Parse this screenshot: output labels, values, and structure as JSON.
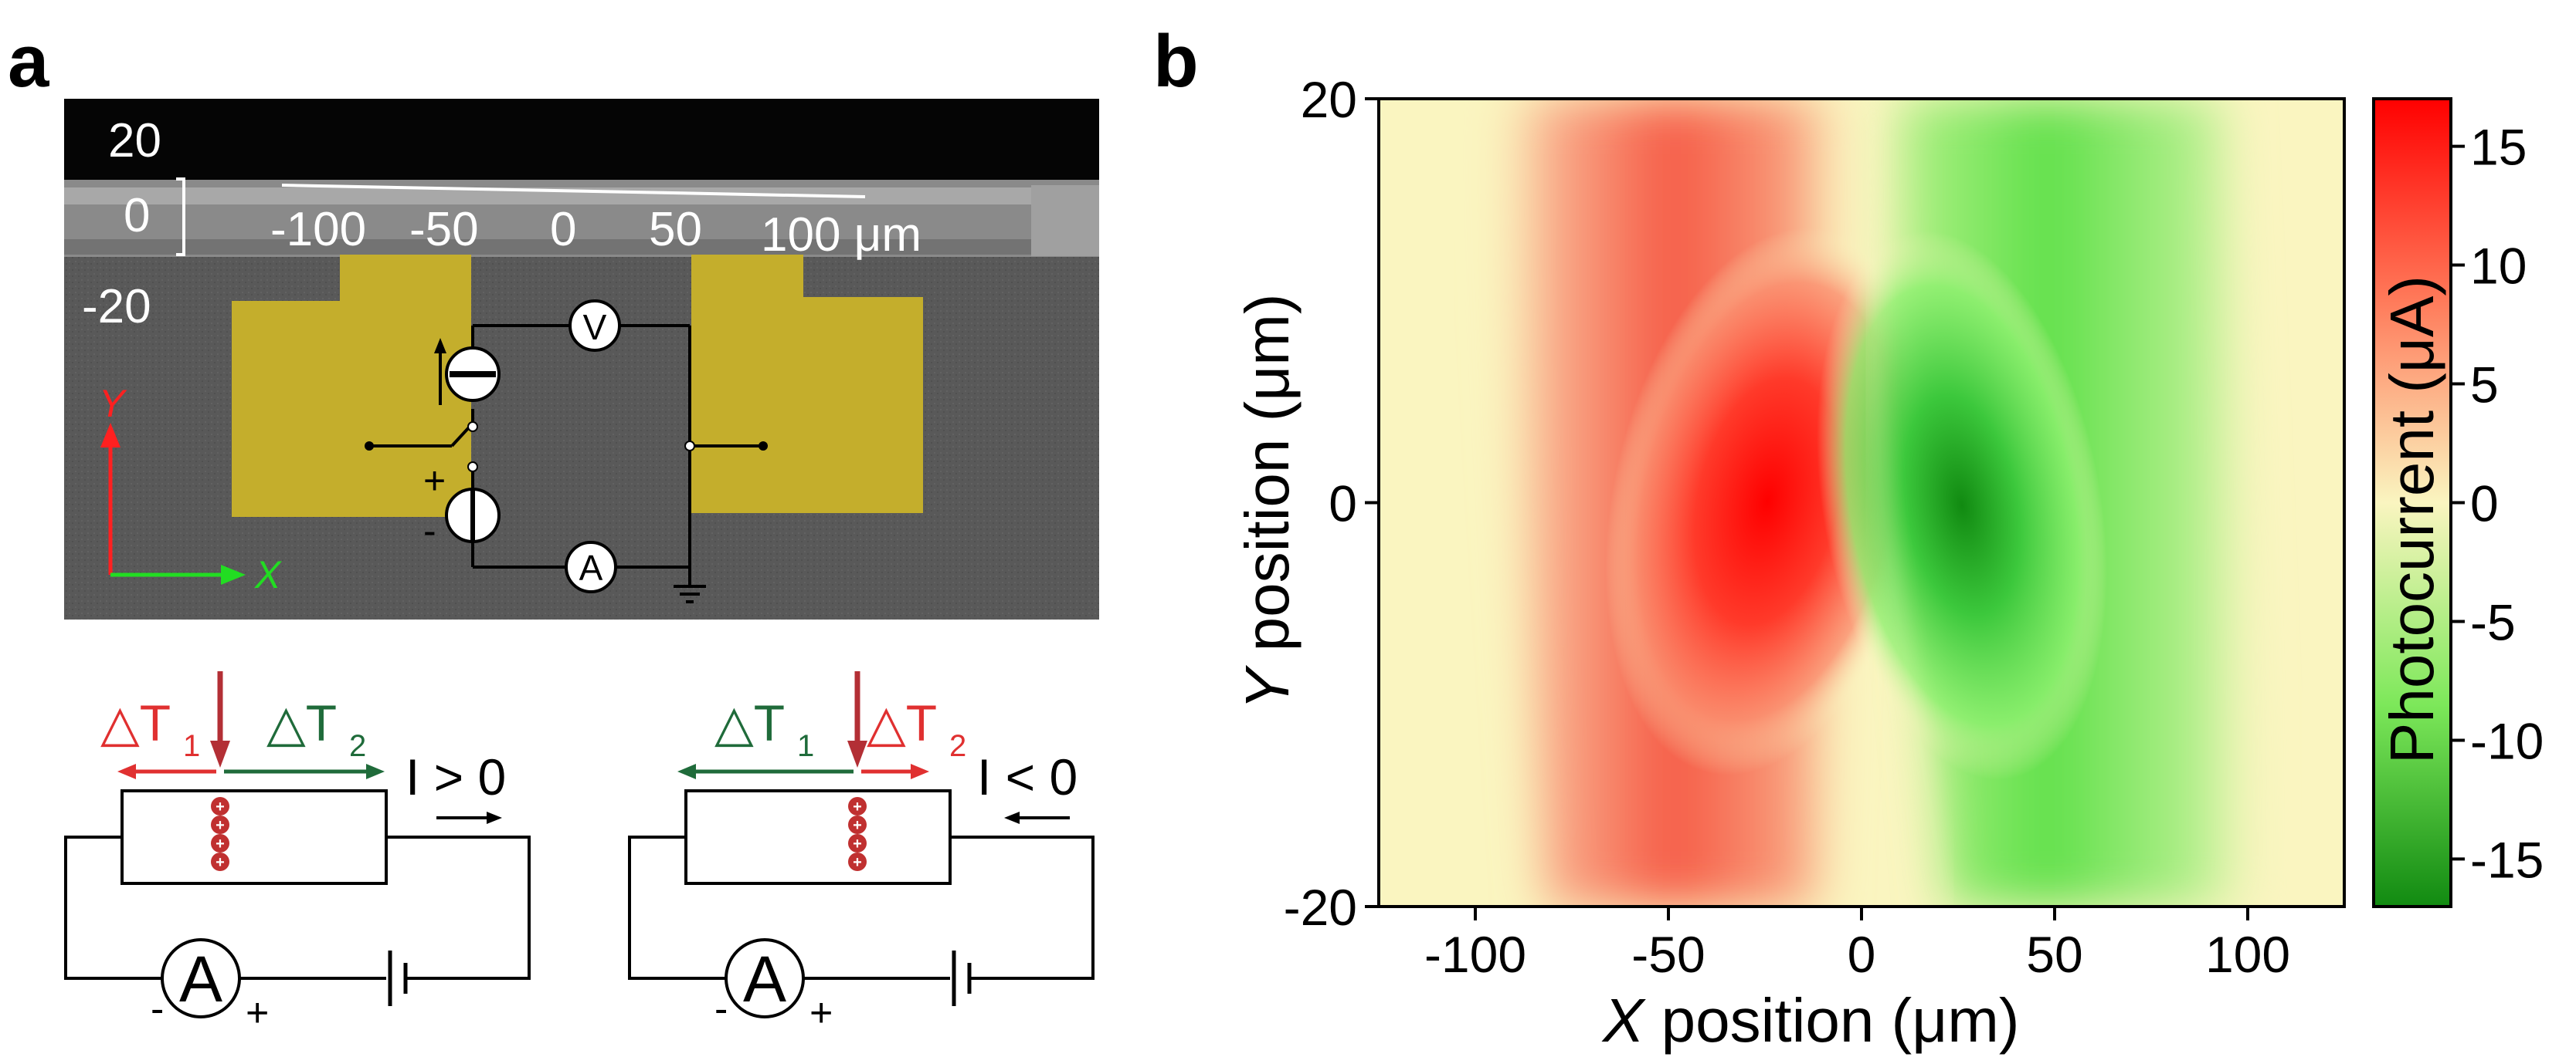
{
  "panel_a": {
    "label": "a",
    "sem": {
      "y_labels": [
        "20",
        "0",
        "-20"
      ],
      "scale_labels": [
        "-100",
        "-50",
        "0",
        "50",
        "100 μm"
      ],
      "axis_y_label": "Y",
      "axis_x_label": "X",
      "meter_v": "V",
      "meter_a": "A",
      "plus": "+",
      "minus": "-"
    },
    "schematic_left": {
      "dt1": "△T",
      "dt1_sub": "1",
      "dt2": "△T",
      "dt2_sub": "2",
      "current": "I > 0",
      "meter": "A",
      "minus": "-",
      "plus": "+",
      "charge": "+"
    },
    "schematic_right": {
      "dt1": "△T",
      "dt1_sub": "1",
      "dt2": "△T",
      "dt2_sub": "2",
      "current": "I < 0",
      "meter": "A",
      "minus": "-",
      "plus": "+",
      "charge": "+"
    },
    "colors": {
      "hot": "#d42a30",
      "cold": "#1f6b3a",
      "gold": "#c9b030",
      "sem_bg": "#5a5a5a"
    }
  },
  "panel_b": {
    "label": "b",
    "chart_data": {
      "type": "heatmap",
      "x_ticks": [
        "-100",
        "-50",
        "0",
        "50",
        "100"
      ],
      "y_ticks": [
        "20",
        "0",
        "-20"
      ],
      "xlabel_italic": "X",
      "xlabel": " position  (μm)",
      "ylabel_italic": "Y",
      "ylabel": " position  (μm)",
      "colorbar_label": "Photocurrent (μA)",
      "colorbar_ticks": [
        "15",
        "10",
        "5",
        "0",
        "-5",
        "-10",
        "-15"
      ],
      "colorbar_range": [
        -17,
        17
      ],
      "xlim": [
        -125,
        125
      ],
      "ylim": [
        -20,
        20
      ],
      "colormap": [
        "#118a11",
        "#7de85a",
        "#faf5c0",
        "#ff8060",
        "#ff0000"
      ],
      "features": [
        {
          "name": "positive",
          "x": -28,
          "y": 0,
          "value": 16
        },
        {
          "name": "negative",
          "x": 28,
          "y": 0,
          "value": -15
        }
      ]
    }
  }
}
